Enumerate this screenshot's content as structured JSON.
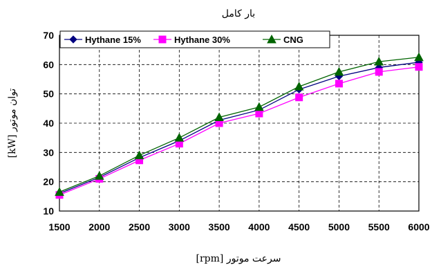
{
  "chart_data": {
    "type": "line",
    "title": "بار کامل",
    "xlabel": "سرعت موتور [rpm]",
    "ylabel": "توان موتور [kW]",
    "x": [
      1500,
      2000,
      2500,
      3000,
      3500,
      4000,
      4500,
      5000,
      5500,
      6000
    ],
    "xlim": [
      1500,
      6000
    ],
    "ylim": [
      10,
      70
    ],
    "x_ticks": [
      "1500",
      "2000",
      "2500",
      "3000",
      "3500",
      "4000",
      "4500",
      "5000",
      "5500",
      "6000"
    ],
    "y_ticks": [
      "10",
      "20",
      "30",
      "40",
      "50",
      "60",
      "70"
    ],
    "grid": true,
    "legend_position": "top",
    "series": [
      {
        "name": "Hythane 15%",
        "marker": "diamond",
        "color": "#000080",
        "values": [
          16.0,
          21.5,
          28.2,
          34.0,
          41.0,
          44.5,
          51.5,
          56.0,
          59.0,
          60.8
        ]
      },
      {
        "name": "Hythane 30%",
        "marker": "square",
        "color": "#ff00ff",
        "values": [
          15.5,
          21.0,
          27.3,
          33.0,
          40.0,
          43.3,
          48.8,
          53.5,
          57.5,
          59.2
        ]
      },
      {
        "name": "CNG",
        "marker": "triangle",
        "color": "#006400",
        "values": [
          16.5,
          22.0,
          29.0,
          35.0,
          42.0,
          45.5,
          52.5,
          57.5,
          61.0,
          62.5
        ]
      }
    ]
  }
}
